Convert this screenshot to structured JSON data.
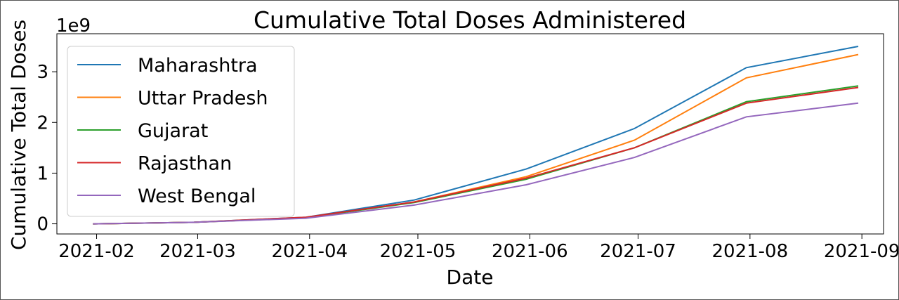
{
  "chart_data": {
    "type": "line",
    "title": "Cumulative Total Doses Administered",
    "xlabel": "Date",
    "ylabel": "Cumulative Total Doses",
    "y_offset_label": "1e9",
    "x_ticks": [
      "2021-02",
      "2021-03",
      "2021-04",
      "2021-05",
      "2021-06",
      "2021-07",
      "2021-08",
      "2021-09"
    ],
    "y_ticks": [
      0,
      1,
      2,
      3
    ],
    "xlim": [
      "2021-01-21",
      "2021-09-07"
    ],
    "ylim": [
      -0.2,
      3.75
    ],
    "x": [
      "2021-01-31",
      "2021-02-28",
      "2021-03-31",
      "2021-04-30",
      "2021-05-31",
      "2021-06-30",
      "2021-07-31",
      "2021-08-31"
    ],
    "series": [
      {
        "name": "Maharashtra",
        "color": "#1f77b4",
        "values": [
          0.0,
          0.03,
          0.13,
          0.47,
          1.08,
          1.88,
          3.08,
          3.5
        ]
      },
      {
        "name": "Uttar Pradesh",
        "color": "#ff7f0e",
        "values": [
          0.0,
          0.03,
          0.12,
          0.43,
          0.93,
          1.65,
          2.88,
          3.34
        ]
      },
      {
        "name": "Gujarat",
        "color": "#2ca02c",
        "values": [
          0.0,
          0.03,
          0.12,
          0.42,
          0.88,
          1.5,
          2.41,
          2.72
        ]
      },
      {
        "name": "Rajasthan",
        "color": "#d62728",
        "values": [
          0.0,
          0.03,
          0.13,
          0.43,
          0.9,
          1.5,
          2.38,
          2.69
        ]
      },
      {
        "name": "West Bengal",
        "color": "#9467bd",
        "values": [
          0.0,
          0.03,
          0.11,
          0.37,
          0.77,
          1.31,
          2.11,
          2.38
        ]
      }
    ],
    "grid": false,
    "legend": "upper-left"
  }
}
